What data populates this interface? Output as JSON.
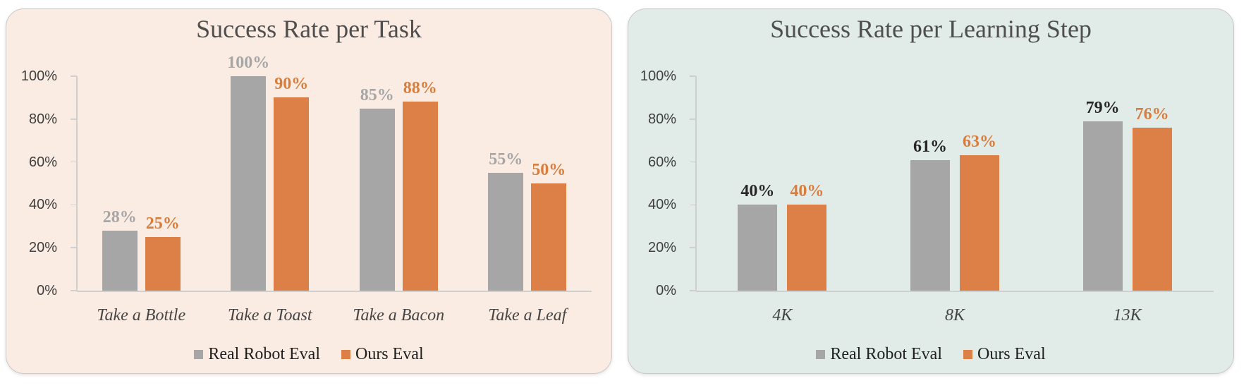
{
  "page": {
    "background": "#FFFFFF"
  },
  "chart_data": [
    {
      "type": "bar",
      "title": "Success Rate per Task",
      "panel_background": "#FAECE2",
      "categories": [
        "Take a Bottle",
        "Take a Toast",
        "Take a Bacon",
        "Take a Leaf"
      ],
      "series": [
        {
          "name": "Real Robot Eval",
          "values": [
            28,
            100,
            85,
            55
          ],
          "color": "#A6A6A6",
          "label_color": "#A6A6A6"
        },
        {
          "name": "Ours Eval",
          "values": [
            25,
            90,
            88,
            50
          ],
          "color": "#DD8047",
          "label_color": "#D87D3C"
        }
      ],
      "value_suffix": "%",
      "ytick_labels": [
        "0%",
        "20%",
        "40%",
        "60%",
        "80%",
        "100%"
      ],
      "ylim": [
        0,
        100
      ],
      "xlabel": "",
      "ylabel": "",
      "grid": false,
      "legend_position": "bottom"
    },
    {
      "type": "bar",
      "title": "Success Rate per Learning Step",
      "panel_background": "#E1EBE8",
      "categories": [
        "4K",
        "8K",
        "13K"
      ],
      "series": [
        {
          "name": "Real Robot Eval",
          "values": [
            40,
            61,
            79
          ],
          "color": "#A6A6A6",
          "label_color": "#262626"
        },
        {
          "name": "Ours Eval",
          "values": [
            40,
            63,
            76
          ],
          "color": "#DD8047",
          "label_color": "#D87D3C"
        }
      ],
      "value_suffix": "%",
      "ytick_labels": [
        "0%",
        "20%",
        "40%",
        "60%",
        "80%",
        "100%"
      ],
      "ylim": [
        0,
        100
      ],
      "xlabel": "",
      "ylabel": "",
      "grid": false,
      "legend_position": "bottom"
    }
  ]
}
